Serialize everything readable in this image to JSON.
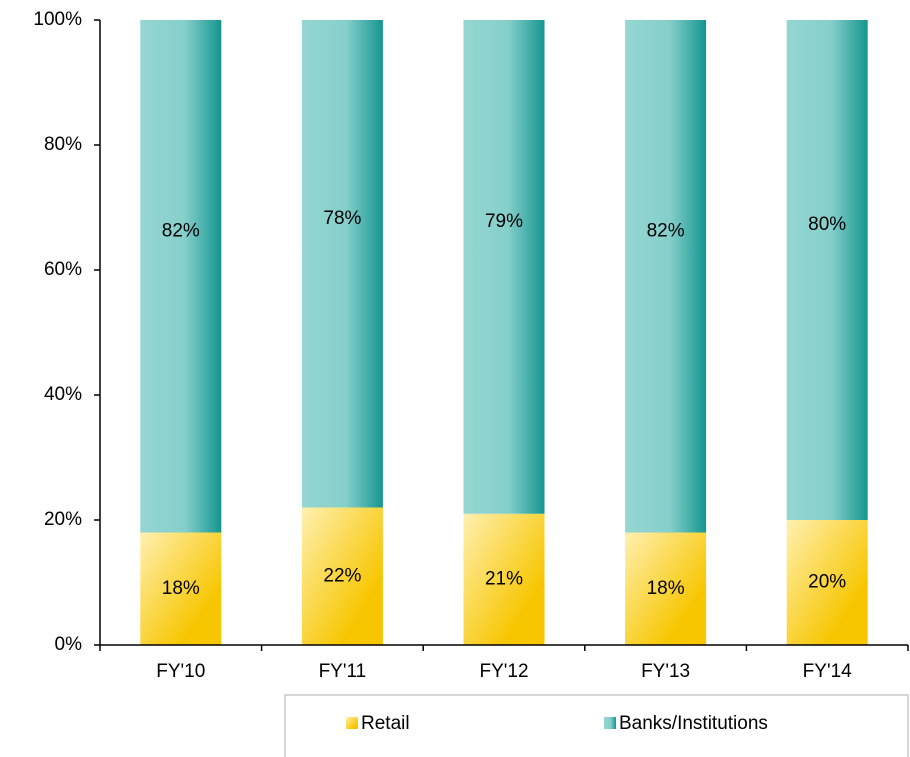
{
  "chart_data": {
    "type": "stacked_bar",
    "categories": [
      "FY'10",
      "FY'11",
      "FY'12",
      "FY'13",
      "FY'14"
    ],
    "series": [
      {
        "name": "Retail",
        "color": "#f7c600",
        "values": [
          18,
          22,
          21,
          18,
          20
        ],
        "value_labels": [
          "18%",
          "22%",
          "21%",
          "18%",
          "20%"
        ]
      },
      {
        "name": "Banks/Institutions",
        "color": "#15968f",
        "values": [
          82,
          78,
          79,
          82,
          80
        ],
        "value_labels": [
          "82%",
          "78%",
          "79%",
          "82%",
          "80%"
        ]
      }
    ],
    "ylim": [
      0,
      100
    ],
    "yticks": [
      {
        "value": 0,
        "label": "0%"
      },
      {
        "value": 20,
        "label": "20%"
      },
      {
        "value": 40,
        "label": "40%"
      },
      {
        "value": 60,
        "label": "60%"
      },
      {
        "value": 80,
        "label": "80%"
      },
      {
        "value": 100,
        "label": "100%"
      }
    ],
    "legend": "bottom-right"
  }
}
